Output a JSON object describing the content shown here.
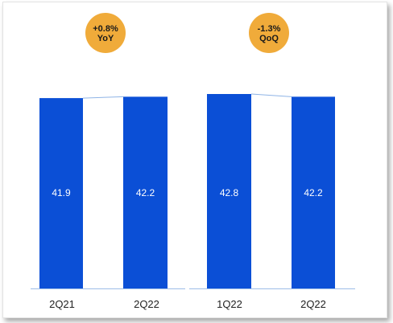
{
  "chart_data": [
    {
      "type": "bar",
      "categories": [
        "2Q21",
        "2Q22"
      ],
      "values": [
        41.9,
        42.2
      ],
      "value_labels": [
        "41.9",
        "42.2"
      ],
      "badge": {
        "line1": "+0.8%",
        "line2": "YoY"
      }
    },
    {
      "type": "bar",
      "categories": [
        "1Q22",
        "2Q22"
      ],
      "values": [
        42.8,
        42.2
      ],
      "value_labels": [
        "42.8",
        "42.2"
      ],
      "badge": {
        "line1": "-1.3%",
        "line2": "QoQ"
      }
    }
  ],
  "colors": {
    "bar": "#0b4fd6",
    "badge": "#f0ab3a",
    "connector": "#8fb4e6",
    "axis": "#9dbde8",
    "value_text": "#ffffff",
    "tick_text": "#222222",
    "badge_text": "#1a1a1a"
  }
}
